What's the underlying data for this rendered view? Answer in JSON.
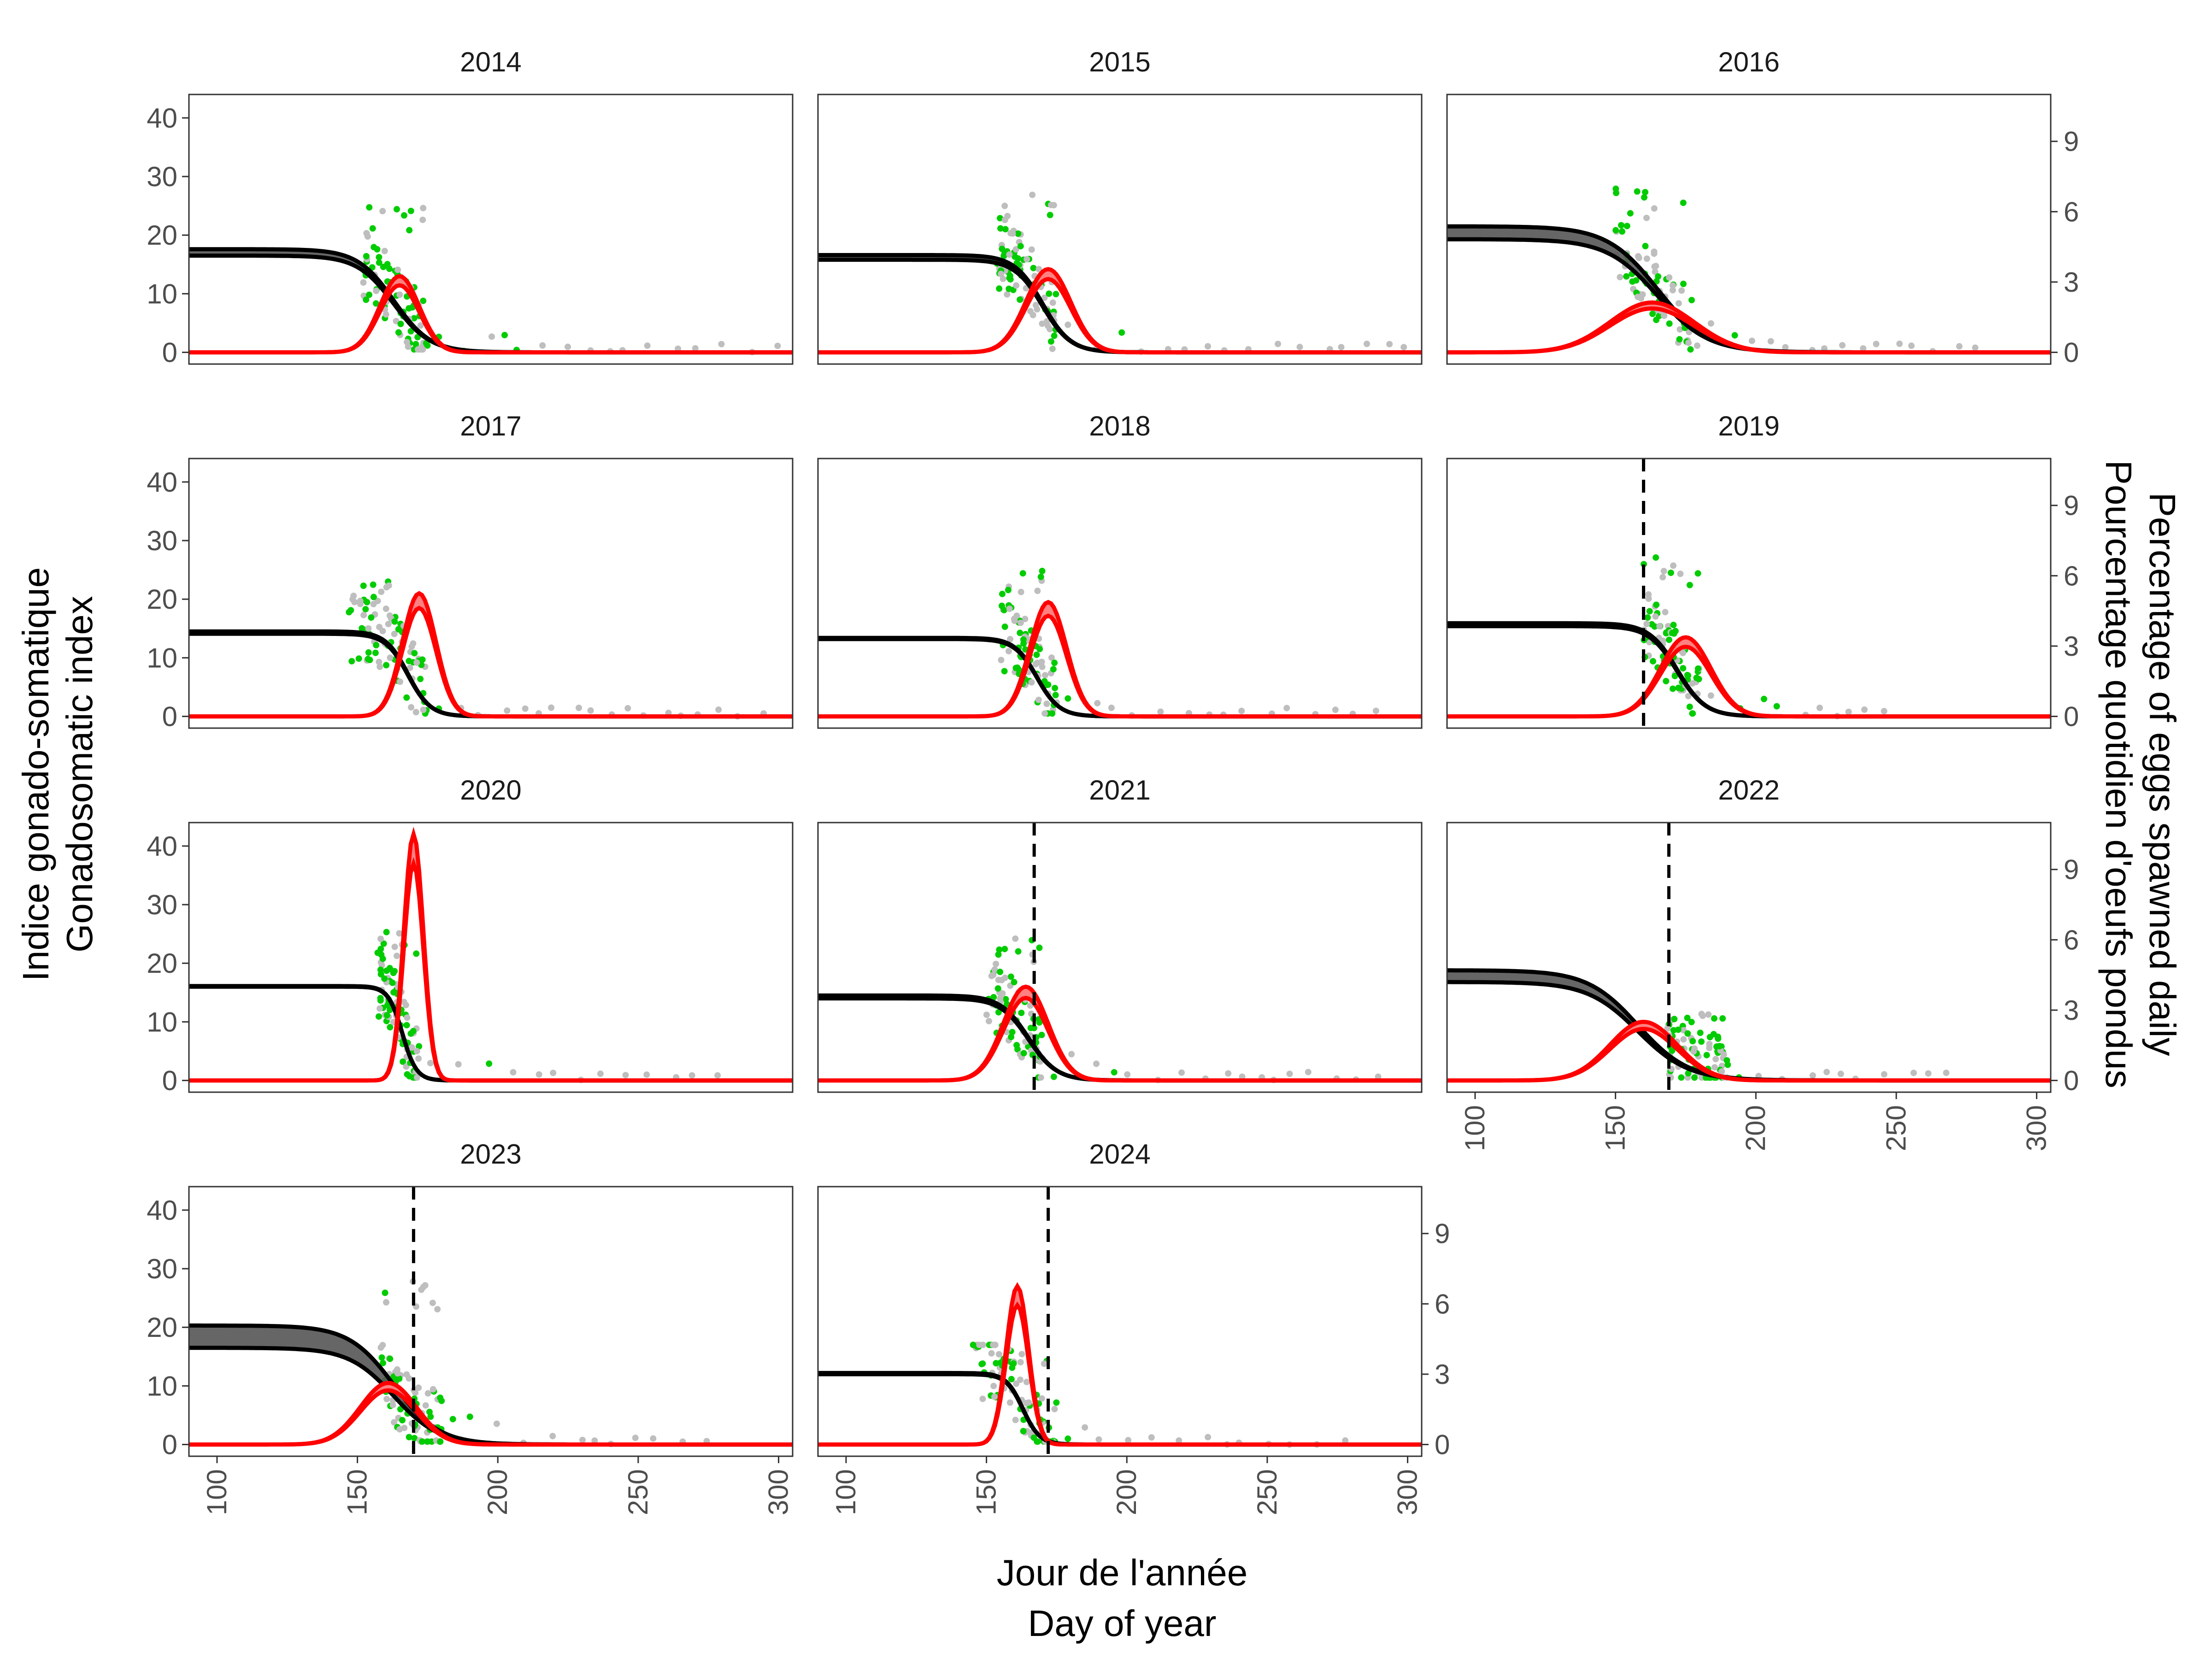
{
  "chart_data": {
    "type": "line",
    "layout": "facets",
    "xlabel": [
      "Jour de l'année",
      "Day of year"
    ],
    "ylabel_left": [
      "Indice gonado-somatique",
      "Gonadosomatic index"
    ],
    "ylabel_right": [
      "Percentage of eggs spawned daily",
      "Pourcentage quotidien d'oeufs pondus"
    ],
    "xlim": [
      90,
      305
    ],
    "xticks": [
      100,
      150,
      200,
      250,
      300
    ],
    "ylim_left": [
      -2,
      44
    ],
    "yticks_left": [
      0,
      10,
      20,
      30,
      40
    ],
    "ylim_right": [
      -0.5,
      11
    ],
    "yticks_right": [
      0,
      3,
      6,
      9
    ],
    "grid": false,
    "legend": "none",
    "colors": {
      "gsi_curve": "#000000",
      "gsi_band": "#555555",
      "spawn_curve": "#ff0000",
      "spawn_band": "#ff8080",
      "gsi_points_pre": "#bebebe",
      "gsi_points_post": "#00cc00",
      "vline": "#000000"
    },
    "panels": [
      {
        "year": "2014",
        "gsi_top": [
          16.5,
          17.6
        ],
        "gsi_mid": 163,
        "gsi_scale": 6.5,
        "spawn_peak": 13,
        "spawn_mid": 165,
        "spawn_sd": 7,
        "vline": null,
        "pts_start": 152,
        "pts_end": 175,
        "pts_max": 25,
        "tail_end": 300,
        "tail_green_end": 215
      },
      {
        "year": "2015",
        "gsi_top": [
          15.8,
          16.6
        ],
        "gsi_mid": 170,
        "gsi_scale": 5,
        "spawn_peak": 14.2,
        "spawn_mid": 172,
        "spawn_sd": 8,
        "vline": null,
        "pts_start": 153,
        "pts_end": 175,
        "pts_max": 27,
        "tail_end": 300,
        "tail_green_end": 200
      },
      {
        "year": "2016",
        "gsi_top": [
          19.3,
          21.5
        ],
        "gsi_mid": 165,
        "gsi_scale": 9,
        "spawn_peak": 8.5,
        "spawn_mid": 163,
        "spawn_sd": 15,
        "vline": null,
        "pts_start": 150,
        "pts_end": 180,
        "pts_max": 28,
        "tail_end": 280,
        "tail_green_end": 210
      },
      {
        "year": "2017",
        "gsi_top": [
          14.1,
          14.5
        ],
        "gsi_mid": 168,
        "gsi_scale": 4,
        "spawn_peak": 21,
        "spawn_mid": 172,
        "spawn_sd": 6,
        "vline": null,
        "pts_start": 147,
        "pts_end": 175,
        "pts_max": 23,
        "tail_end": 300,
        "tail_green_end": 185
      },
      {
        "year": "2018",
        "gsi_top": [
          13.2,
          13.4
        ],
        "gsi_mid": 168,
        "gsi_scale": 4,
        "spawn_peak": 19.5,
        "spawn_mid": 172,
        "spawn_sd": 6.5,
        "vline": null,
        "pts_start": 155,
        "pts_end": 175,
        "pts_max": 26,
        "tail_end": 290,
        "tail_green_end": 190
      },
      {
        "year": "2019",
        "gsi_top": [
          15.4,
          15.9
        ],
        "gsi_mid": 172,
        "gsi_scale": 5,
        "spawn_peak": 13.5,
        "spawn_mid": 175,
        "spawn_sd": 9,
        "vline": 160,
        "pts_start": 160,
        "pts_end": 180,
        "pts_max": 28,
        "tail_end": 250,
        "tail_green_end": 210
      },
      {
        "year": "2020",
        "gsi_top": [
          16,
          16.1
        ],
        "gsi_mid": 166,
        "gsi_scale": 2.5,
        "spawn_peak": 42,
        "spawn_mid": 170,
        "spawn_sd": 3.5,
        "vline": null,
        "pts_start": 157,
        "pts_end": 172,
        "pts_max": 26,
        "tail_end": 280,
        "tail_green_end": 200
      },
      {
        "year": "2021",
        "gsi_top": [
          14,
          14.5
        ],
        "gsi_mid": 165,
        "gsi_scale": 5,
        "spawn_peak": 16,
        "spawn_mid": 164,
        "spawn_sd": 8,
        "vline": 167,
        "pts_start": 150,
        "pts_end": 170,
        "pts_max": 25,
        "tail_end": 290,
        "tail_green_end": 200
      },
      {
        "year": "2022",
        "gsi_top": [
          16.8,
          18.8
        ],
        "gsi_mid": 158,
        "gsi_scale": 9,
        "spawn_peak": 10,
        "spawn_mid": 160,
        "spawn_sd": 12,
        "vline": 169,
        "pts_start": 168,
        "pts_end": 190,
        "pts_max": 12,
        "tail_end": 270,
        "tail_green_end": 200
      },
      {
        "year": "2023",
        "gsi_top": [
          16.5,
          20.3
        ],
        "gsi_mid": 163,
        "gsi_scale": 8,
        "spawn_peak": 10.5,
        "spawn_mid": 161,
        "spawn_sd": 10,
        "vline": 170,
        "pts_start": 158,
        "pts_end": 180,
        "pts_max": 28,
        "tail_end": 280,
        "tail_green_end": 200
      },
      {
        "year": "2024",
        "gsi_top": [
          12,
          12.2
        ],
        "gsi_mid": 163,
        "gsi_scale": 3,
        "spawn_peak": 27,
        "spawn_mid": 161,
        "spawn_sd": 4,
        "vline": 172,
        "pts_start": 145,
        "pts_end": 175,
        "pts_max": 17,
        "tail_end": 280,
        "tail_green_end": 190
      }
    ]
  }
}
